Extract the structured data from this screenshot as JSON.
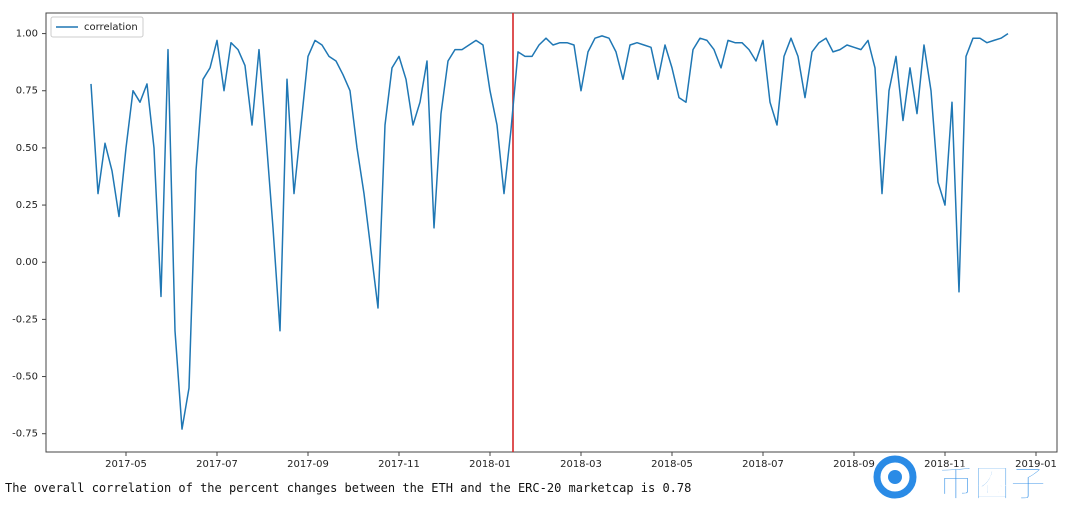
{
  "chart_data": {
    "type": "line",
    "legend": "upper left",
    "grid": false,
    "ylim": [
      -0.83,
      1.09
    ],
    "yticks": [
      {
        "value": 1.0,
        "label": "1.00"
      },
      0.75,
      {
        "value": 0.5,
        "label": "0.50"
      },
      0.25,
      {
        "value": 0.0,
        "label": "0.00"
      },
      -0.25,
      {
        "value": -0.5,
        "label": "-0.50"
      },
      -0.75
    ],
    "categories": [
      null,
      null,
      null,
      null,
      null,
      "2017-05",
      null,
      null,
      null,
      null,
      null,
      null,
      null,
      null,
      null,
      null,
      null,
      null,
      "2017-07",
      null,
      null,
      null,
      null,
      null,
      null,
      null,
      null,
      null,
      null,
      null,
      null,
      "2017-09",
      null,
      null,
      null,
      null,
      null,
      null,
      null,
      null,
      null,
      null,
      null,
      null,
      "2017-11",
      null,
      null,
      null,
      null,
      null,
      null,
      null,
      null,
      null,
      null,
      null,
      null,
      "2018-01",
      null,
      null,
      null,
      null,
      null,
      null,
      null,
      null,
      null,
      null,
      null,
      null,
      "2018-03",
      null,
      null,
      null,
      null,
      null,
      null,
      null,
      null,
      null,
      null,
      null,
      null,
      "2018-05",
      null,
      null,
      null,
      null,
      null,
      null,
      null,
      null,
      null,
      null,
      null,
      null,
      "2018-07",
      null,
      null,
      null,
      null,
      null,
      null,
      null,
      null,
      null,
      null,
      null,
      null,
      "2018-09",
      null,
      null,
      null,
      null,
      null,
      null,
      null,
      null,
      null,
      null,
      null,
      null,
      "2018-11",
      null,
      null,
      null,
      null,
      null,
      null,
      null,
      null,
      null,
      null,
      null,
      null,
      "2019-01"
    ],
    "series": [
      {
        "name": "correlation",
        "color": "#1f77b4",
        "values": [
          0.78,
          0.3,
          0.52,
          0.4,
          0.2,
          0.5,
          0.75,
          0.7,
          0.78,
          0.5,
          -0.15,
          0.93,
          -0.3,
          -0.73,
          -0.55,
          0.4,
          0.8,
          0.85,
          0.97,
          0.75,
          0.96,
          0.93,
          0.86,
          0.6,
          0.93,
          0.55,
          0.15,
          -0.3,
          0.8,
          0.3,
          0.6,
          0.9,
          0.97,
          0.95,
          0.9,
          0.88,
          0.82,
          0.75,
          0.5,
          0.3,
          0.05,
          -0.2,
          0.6,
          0.85,
          0.9,
          0.8,
          0.6,
          0.7,
          0.88,
          0.15,
          0.65,
          0.88,
          0.93,
          0.93,
          0.95,
          0.97,
          0.95,
          0.75,
          0.6,
          0.3,
          0.58,
          0.92,
          0.9,
          0.9,
          0.95,
          0.98,
          0.95,
          0.96,
          0.96,
          0.95,
          0.75,
          0.92,
          0.98,
          0.99,
          0.98,
          0.92,
          0.8,
          0.95,
          0.96,
          0.95,
          0.94,
          0.8,
          0.95,
          0.85,
          0.72,
          0.7,
          0.93,
          0.98,
          0.97,
          0.93,
          0.85,
          0.97,
          0.96,
          0.96,
          0.93,
          0.88,
          0.97,
          0.7,
          0.6,
          0.9,
          0.98,
          0.9,
          0.72,
          0.92,
          0.96,
          0.98,
          0.92,
          0.93,
          0.95,
          0.94,
          0.93,
          0.97,
          0.85,
          0.3,
          0.75,
          0.9,
          0.62,
          0.85,
          0.65,
          0.95,
          0.75,
          0.35,
          0.25,
          0.7,
          -0.13,
          0.9,
          0.98,
          0.98,
          0.96,
          0.97,
          0.98,
          1.0,
          null,
          null,
          null,
          null
        ]
      }
    ]
  },
  "output_text": "The overall correlation of the percent changes between the ETH and the ERC-20 marketcap is 0.78",
  "watermark": "币圈子"
}
